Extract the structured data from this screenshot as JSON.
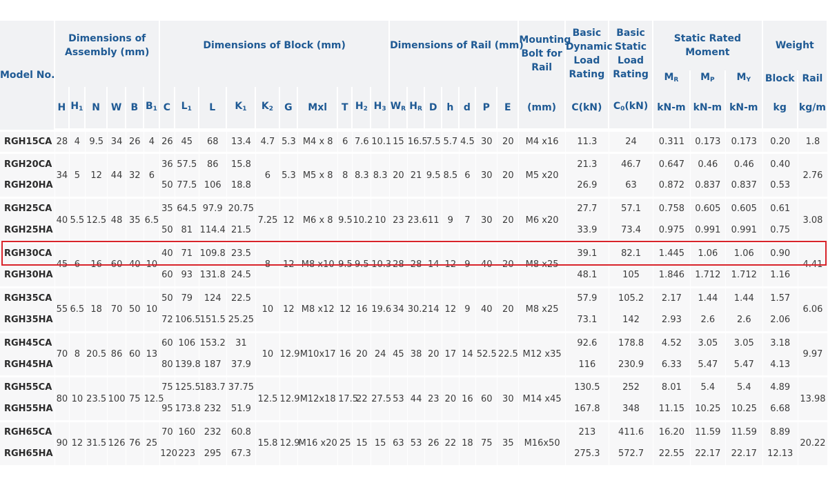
{
  "header": {
    "model_no": "Model No.",
    "groups": {
      "assembly": "Dimensions of Assembly (mm)",
      "block": "Dimensions of Block (mm)",
      "rail": "Dimensions of Rail (mm)",
      "bolt": "Mounting Bolt for Rail",
      "dynamic": "Basic Dynamic Load Rating",
      "static_load": "Basic Static Load Rating",
      "moment": "Static Rated Moment",
      "weight": "Weight"
    },
    "moment_subs": [
      {
        "base": "M",
        "sub": "R"
      },
      {
        "base": "M",
        "sub": "P"
      },
      {
        "base": "M",
        "sub": "Y"
      }
    ],
    "weight_subs": [
      "Block",
      "Rail"
    ],
    "columns": [
      {
        "base": "H",
        "sub": ""
      },
      {
        "base": "H",
        "sub": "1"
      },
      {
        "base": "N",
        "sub": ""
      },
      {
        "base": "W",
        "sub": ""
      },
      {
        "base": "B",
        "sub": ""
      },
      {
        "base": "B",
        "sub": "1"
      },
      {
        "base": "C",
        "sub": ""
      },
      {
        "base": "L",
        "sub": "1"
      },
      {
        "base": "L",
        "sub": ""
      },
      {
        "base": "K",
        "sub": "1"
      },
      {
        "base": "K",
        "sub": "2"
      },
      {
        "base": "G",
        "sub": ""
      },
      {
        "base": "Mxl",
        "sub": ""
      },
      {
        "base": "T",
        "sub": ""
      },
      {
        "base": "H",
        "sub": "2"
      },
      {
        "base": "H",
        "sub": "3"
      },
      {
        "base": "W",
        "sub": "R"
      },
      {
        "base": "H",
        "sub": "R"
      },
      {
        "base": "D",
        "sub": ""
      },
      {
        "base": "h",
        "sub": ""
      },
      {
        "base": "d",
        "sub": ""
      },
      {
        "base": "P",
        "sub": ""
      },
      {
        "base": "E",
        "sub": ""
      },
      {
        "base": "(mm)",
        "sub": ""
      },
      {
        "base": "C(kN)",
        "sub": ""
      },
      {
        "base": "C",
        "sub": "0",
        "suffix": "(kN)"
      },
      {
        "base": "kN-m",
        "sub": ""
      },
      {
        "base": "kN-m",
        "sub": ""
      },
      {
        "base": "kN-m",
        "sub": ""
      },
      {
        "base": "kg",
        "sub": ""
      },
      {
        "base": "kg/m",
        "sub": ""
      }
    ]
  },
  "groups": [
    {
      "shared": {
        "H": "28",
        "H1": "4",
        "N": "9.5",
        "W": "34",
        "B": "26",
        "B1": "4",
        "K2": "4.7",
        "G": "5.3",
        "Mxl": "M4 x 8",
        "T": "6",
        "H2": "7.6",
        "H3": "10.1",
        "WR": "15",
        "HR": "16.5",
        "D": "7.5",
        "h": "5.7",
        "d": "4.5",
        "P": "30",
        "E": "20",
        "bolt": "M4 x16",
        "rail": "1.8"
      },
      "rows": [
        {
          "model": "RGH15CA",
          "C": "26",
          "L1": "45",
          "L": "68",
          "K1": "13.4",
          "Cdyn": "11.3",
          "C0": "24",
          "MR": "0.311",
          "MP": "0.173",
          "MY": "0.173",
          "block": "0.20"
        }
      ]
    },
    {
      "shared": {
        "H": "34",
        "H1": "5",
        "N": "12",
        "W": "44",
        "B": "32",
        "B1": "6",
        "K2": "6",
        "G": "5.3",
        "Mxl": "M5 x 8",
        "T": "8",
        "H2": "8.3",
        "H3": "8.3",
        "WR": "20",
        "HR": "21",
        "D": "9.5",
        "h": "8.5",
        "d": "6",
        "P": "30",
        "E": "20",
        "bolt": "M5 x20",
        "rail": "2.76"
      },
      "rows": [
        {
          "model": "RGH20CA",
          "C": "36",
          "L1": "57.5",
          "L": "86",
          "K1": "15.8",
          "Cdyn": "21.3",
          "C0": "46.7",
          "MR": "0.647",
          "MP": "0.46",
          "MY": "0.46",
          "block": "0.40"
        },
        {
          "model": "RGH20HA",
          "C": "50",
          "L1": "77.5",
          "L": "106",
          "K1": "18.8",
          "Cdyn": "26.9",
          "C0": "63",
          "MR": "0.872",
          "MP": "0.837",
          "MY": "0.837",
          "block": "0.53"
        }
      ]
    },
    {
      "shared": {
        "H": "40",
        "H1": "5.5",
        "N": "12.5",
        "W": "48",
        "B": "35",
        "B1": "6.5",
        "K2": "7.25",
        "G": "12",
        "Mxl": "M6 x 8",
        "T": "9.5",
        "H2": "10.2",
        "H3": "10",
        "WR": "23",
        "HR": "23.6",
        "D": "11",
        "h": "9",
        "d": "7",
        "P": "30",
        "E": "20",
        "bolt": "M6 x20",
        "rail": "3.08"
      },
      "rows": [
        {
          "model": "RGH25CA",
          "C": "35",
          "L1": "64.5",
          "L": "97.9",
          "K1": "20.75",
          "Cdyn": "27.7",
          "C0": "57.1",
          "MR": "0.758",
          "MP": "0.605",
          "MY": "0.605",
          "block": "0.61"
        },
        {
          "model": "RGH25HA",
          "C": "50",
          "L1": "81",
          "L": "114.4",
          "K1": "21.5",
          "Cdyn": "33.9",
          "C0": "73.4",
          "MR": "0.975",
          "MP": "0.991",
          "MY": "0.991",
          "block": "0.75"
        }
      ]
    },
    {
      "shared": {
        "H": "45",
        "H1": "6",
        "N": "16",
        "W": "60",
        "B": "40",
        "B1": "10",
        "K2": "8",
        "G": "12",
        "Mxl": "M8 x10",
        "T": "9.5",
        "H2": "9.5",
        "H3": "10.3",
        "WR": "28",
        "HR": "28",
        "D": "14",
        "h": "12",
        "d": "9",
        "P": "40",
        "E": "20",
        "bolt": "M8 x25",
        "rail": "4.41"
      },
      "rows": [
        {
          "model": "RGH30CA",
          "C": "40",
          "L1": "71",
          "L": "109.8",
          "K1": "23.5",
          "Cdyn": "39.1",
          "C0": "82.1",
          "MR": "1.445",
          "MP": "1.06",
          "MY": "1.06",
          "block": "0.90"
        },
        {
          "model": "RGH30HA",
          "C": "60",
          "L1": "93",
          "L": "131.8",
          "K1": "24.5",
          "Cdyn": "48.1",
          "C0": "105",
          "MR": "1.846",
          "MP": "1.712",
          "MY": "1.712",
          "block": "1.16"
        }
      ]
    },
    {
      "shared": {
        "H": "55",
        "H1": "6.5",
        "N": "18",
        "W": "70",
        "B": "50",
        "B1": "10",
        "K2": "10",
        "G": "12",
        "Mxl": "M8 x12",
        "T": "12",
        "H2": "16",
        "H3": "19.6",
        "WR": "34",
        "HR": "30.2",
        "D": "14",
        "h": "12",
        "d": "9",
        "P": "40",
        "E": "20",
        "bolt": "M8 x25",
        "rail": "6.06"
      },
      "rows": [
        {
          "model": "RGH35CA",
          "C": "50",
          "L1": "79",
          "L": "124",
          "K1": "22.5",
          "Cdyn": "57.9",
          "C0": "105.2",
          "MR": "2.17",
          "MP": "1.44",
          "MY": "1.44",
          "block": "1.57"
        },
        {
          "model": "RGH35HA",
          "C": "72",
          "L1": "106.5",
          "L": "151.5",
          "K1": "25.25",
          "Cdyn": "73.1",
          "C0": "142",
          "MR": "2.93",
          "MP": "2.6",
          "MY": "2.6",
          "block": "2.06"
        }
      ]
    },
    {
      "shared": {
        "H": "70",
        "H1": "8",
        "N": "20.5",
        "W": "86",
        "B": "60",
        "B1": "13",
        "K2": "10",
        "G": "12.9",
        "Mxl": "M10x17",
        "T": "16",
        "H2": "20",
        "H3": "24",
        "WR": "45",
        "HR": "38",
        "D": "20",
        "h": "17",
        "d": "14",
        "P": "52.5",
        "E": "22.5",
        "bolt": "M12 x35",
        "rail": "9.97"
      },
      "rows": [
        {
          "model": "RGH45CA",
          "C": "60",
          "L1": "106",
          "L": "153.2",
          "K1": "31",
          "Cdyn": "92.6",
          "C0": "178.8",
          "MR": "4.52",
          "MP": "3.05",
          "MY": "3.05",
          "block": "3.18"
        },
        {
          "model": "RGH45HA",
          "C": "80",
          "L1": "139.8",
          "L": "187",
          "K1": "37.9",
          "Cdyn": "116",
          "C0": "230.9",
          "MR": "6.33",
          "MP": "5.47",
          "MY": "5.47",
          "block": "4.13"
        }
      ]
    },
    {
      "shared": {
        "H": "80",
        "H1": "10",
        "N": "23.5",
        "W": "100",
        "B": "75",
        "B1": "12.5",
        "K2": "12.5",
        "G": "12.9",
        "Mxl": "M12x18",
        "T": "17.5",
        "H2": "22",
        "H3": "27.5",
        "WR": "53",
        "HR": "44",
        "D": "23",
        "h": "20",
        "d": "16",
        "P": "60",
        "E": "30",
        "bolt": "M14 x45",
        "rail": "13.98"
      },
      "rows": [
        {
          "model": "RGH55CA",
          "C": "75",
          "L1": "125.5",
          "L": "183.7",
          "K1": "37.75",
          "Cdyn": "130.5",
          "C0": "252",
          "MR": "8.01",
          "MP": "5.4",
          "MY": "5.4",
          "block": "4.89"
        },
        {
          "model": "RGH55HA",
          "C": "95",
          "L1": "173.8",
          "L": "232",
          "K1": "51.9",
          "Cdyn": "167.8",
          "C0": "348",
          "MR": "11.15",
          "MP": "10.25",
          "MY": "10.25",
          "block": "6.68"
        }
      ]
    },
    {
      "shared": {
        "H": "90",
        "H1": "12",
        "N": "31.5",
        "W": "126",
        "B": "76",
        "B1": "25",
        "K2": "15.8",
        "G": "12.9",
        "Mxl": "M16 x20",
        "T": "25",
        "H2": "15",
        "H3": "15",
        "WR": "63",
        "HR": "53",
        "D": "26",
        "h": "22",
        "d": "18",
        "P": "75",
        "E": "35",
        "bolt": "M16x50",
        "rail": "20.22"
      },
      "rows": [
        {
          "model": "RGH65CA",
          "C": "70",
          "L1": "160",
          "L": "232",
          "K1": "60.8",
          "Cdyn": "213",
          "C0": "411.6",
          "MR": "16.20",
          "MP": "11.59",
          "MY": "11.59",
          "block": "8.89"
        },
        {
          "model": "RGH65HA",
          "C": "120",
          "L1": "223",
          "L": "295",
          "K1": "67.3",
          "Cdyn": "275.3",
          "C0": "572.7",
          "MR": "22.55",
          "MP": "22.17",
          "MY": "22.17",
          "block": "12.13"
        }
      ]
    }
  ],
  "highlight": {
    "model": "RGH30CA",
    "color": "#d8232a"
  }
}
